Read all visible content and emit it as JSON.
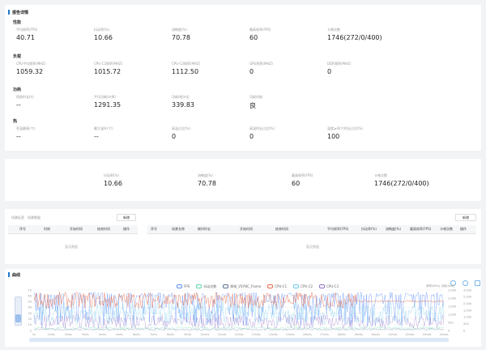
{
  "report": {
    "title": "报告详情",
    "groups": [
      {
        "name": "性能",
        "metrics": [
          {
            "label": "平均帧率(FPS)",
            "value": "40.71"
          },
          {
            "label": "抖动率(%)",
            "value": "10.66"
          },
          {
            "label": "流畅度(%)",
            "value": "70.78"
          },
          {
            "label": "最高帧率(FPS)",
            "value": "60"
          },
          {
            "label": "卡顿次数",
            "value": "1746(272/0/400)"
          }
        ]
      },
      {
        "name": "负载",
        "metrics": [
          {
            "label": "CPU平均频率(MHZ)",
            "value": "1059.32"
          },
          {
            "label": "CPU-C2频率(MHZ)",
            "value": "1015.72"
          },
          {
            "label": "CPU-C3频率(MHZ)",
            "value": "1112.50"
          },
          {
            "label": "GPU频率(MHZ)",
            "value": "0"
          },
          {
            "label": "DDR频率(MHZ)",
            "value": "0"
          }
        ]
      },
      {
        "name": "功耗",
        "metrics": [
          {
            "label": "续航时长(h)",
            "value": "--"
          },
          {
            "label": "平均功耗(mW)",
            "value": "1291.35"
          },
          {
            "label": "功耗/帧(mJ)",
            "value": "339.83"
          },
          {
            "label": "功耗评级",
            "value": "良"
          }
        ]
      },
      {
        "name": "热",
        "metrics": [
          {
            "label": "壳温最高(℃)",
            "value": "--"
          },
          {
            "label": "最大温升(℃)",
            "value": "--"
          },
          {
            "label": "高温占比(%)",
            "value": "0"
          },
          {
            "label": "高温时长占比(%)",
            "value": "0"
          },
          {
            "label": "温度≥40℃时长占比(%)",
            "value": "100"
          }
        ]
      }
    ]
  },
  "summary": {
    "metrics": [
      {
        "label": "抖动率(%)",
        "value": "10.66"
      },
      {
        "label": "流畅度(%)",
        "value": "70.78"
      },
      {
        "label": "最高帧率(FPS)",
        "value": "60"
      },
      {
        "label": "卡顿次数",
        "value": "1746(272/0/400)"
      }
    ]
  },
  "marks_table": {
    "tabs": [
      "场景标签",
      "场景数据"
    ],
    "add_label": "新增",
    "columns": [
      "序号",
      "时刻",
      "开始时间",
      "结束时间",
      "操作"
    ],
    "empty_text": "暂无数据"
  },
  "scenes_table": {
    "add_label": "新增",
    "columns": [
      "序号",
      "场景名称",
      "耗时时长",
      "开始时间",
      "结束时间",
      "平均帧率(FPS)",
      "抖动率(%)",
      "流畅度(%)",
      "最高帧率(FPS)",
      "卡顿次数",
      "操作"
    ],
    "empty_text": "暂无数据"
  },
  "chart_section": {
    "title": "曲线",
    "toolbar_icons": [
      "zoom-in-icon",
      "refresh-icon",
      "download-icon"
    ]
  },
  "chart_data": {
    "type": "line",
    "series": [
      {
        "name": "FPS",
        "color": "#5b8ff9"
      },
      {
        "name": "抖动总数",
        "color": "#5ad8a6"
      },
      {
        "name": "掉帧_VSYNC_Frame",
        "color": "#5d7092"
      },
      {
        "name": "CPU-C1",
        "color": "#e8684a"
      },
      {
        "name": "CPU-C2",
        "color": "#6dc8ec"
      },
      {
        "name": "CPU-C3",
        "color": "#9270ca"
      }
    ],
    "y_left_ticks": [
      "70",
      "60",
      "50",
      "40",
      "30",
      "20",
      "10",
      "0"
    ],
    "y_right_header": "频率(MHz) 功耗(mW)",
    "y_right_ticks": [
      "2,500",
      "2,000",
      "1,500",
      "1,000",
      "500",
      "0"
    ],
    "y_right2_ticks": [
      "3,000",
      "2,500",
      "2,000",
      "1,500",
      "1,000",
      "500",
      "0"
    ],
    "x_ticks": [
      "0s",
      "1m0s",
      "2m0s",
      "3m0s",
      "4m0s",
      "5m0s",
      "6m0s",
      "7m0s",
      "8m0s",
      "9m0s",
      "10m0s",
      "11m0s",
      "12m0s",
      "13m0s",
      "14m0s",
      "15m0s",
      "16m0s",
      "17m0s",
      "18m0s",
      "19m0s",
      "20m0s",
      "21m0s",
      "22m0s",
      "23m0s",
      "24m0s"
    ]
  }
}
